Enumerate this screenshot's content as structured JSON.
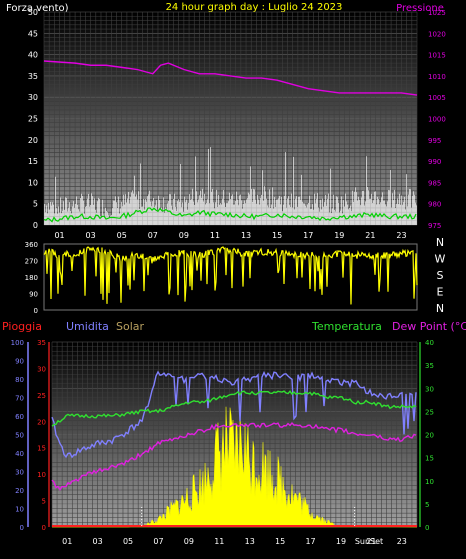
{
  "header": {
    "left_label": "Forza vento)",
    "title": "24 hour graph day : Luglio 24 2023",
    "right_label": "Pressione"
  },
  "bottom_header": {
    "pioggia": "Pioggia",
    "umidita": "Umidita",
    "solar": "Solar",
    "temperatura": "Temperatura",
    "dewpoint": "Dew Point (°C)"
  },
  "compass": [
    "N",
    "W",
    "S",
    "E",
    "N"
  ],
  "sunset_label": "SunSet",
  "colors": {
    "wind_axis": "#ffffff",
    "pressure": "#e000e0",
    "gust": "#ffffff",
    "avg": "#00d000",
    "direction": "#ffff00",
    "rain": "#ff2020",
    "humidity": "#8080ff",
    "solar": "#ffff00",
    "temperature": "#30e030",
    "dewpoint": "#e020e0"
  },
  "chart_data": [
    {
      "type": "line",
      "name": "wind-pressure",
      "x_ticks": [
        "01",
        "03",
        "05",
        "07",
        "09",
        "11",
        "13",
        "15",
        "17",
        "19",
        "21",
        "23"
      ],
      "ylim_left": [
        0,
        50
      ],
      "yticks_left": [
        "0",
        "5",
        "10",
        "15",
        "20",
        "25",
        "30",
        "35",
        "40",
        "45",
        "50"
      ],
      "ylim_right": [
        975,
        1025
      ],
      "yticks_right": [
        "975",
        "980",
        "985",
        "990",
        "995",
        "1000",
        "1005",
        "1010",
        "1015",
        "1020",
        "1025"
      ],
      "grid": true,
      "series": [
        {
          "key": "pressure",
          "x": [
            0,
            2,
            3,
            4,
            5,
            6,
            7,
            7.5,
            8,
            9,
            10,
            11,
            12,
            13,
            14,
            15,
            16,
            17,
            18,
            19,
            20,
            21,
            22,
            23,
            24
          ],
          "values": [
            1013.5,
            1013,
            1012.5,
            1012.5,
            1012,
            1011.5,
            1010.5,
            1012.5,
            1013,
            1011.5,
            1010.5,
            1010.5,
            1010,
            1009.5,
            1009.5,
            1009,
            1008,
            1007,
            1006.5,
            1006,
            1006,
            1006,
            1006,
            1006,
            1005.5
          ]
        },
        {
          "key": "gust",
          "x": [
            0,
            1,
            2,
            3,
            4,
            5,
            6,
            7,
            8,
            9,
            10,
            11,
            12,
            13,
            14,
            15,
            16,
            17,
            18,
            19,
            20,
            21,
            22,
            23,
            24
          ],
          "values": [
            5,
            4,
            5,
            5,
            4,
            5,
            6,
            6,
            5,
            5,
            8,
            6,
            6,
            6,
            7,
            6,
            5,
            6,
            5,
            5,
            6,
            7,
            6,
            6,
            6
          ]
        },
        {
          "key": "avg",
          "x": [
            0,
            1,
            2,
            3,
            4,
            5,
            6,
            7,
            8,
            9,
            10,
            11,
            12,
            13,
            14,
            15,
            16,
            17,
            18,
            19,
            20,
            21,
            22,
            23,
            24
          ],
          "values": [
            1,
            1.5,
            2,
            2,
            1.5,
            2,
            3,
            4,
            3,
            2,
            3,
            2.5,
            2.5,
            2,
            2,
            2.5,
            2,
            2,
            1.5,
            2,
            2,
            2.5,
            2,
            2,
            2
          ]
        }
      ]
    },
    {
      "type": "line",
      "name": "wind-direction",
      "ylim": [
        0,
        360
      ],
      "yticks": [
        "0",
        "90",
        "180",
        "270",
        "360"
      ],
      "series": [
        {
          "key": "direction",
          "x": [
            0,
            1,
            2,
            3,
            4,
            5,
            6,
            7,
            8,
            9,
            10,
            11,
            12,
            13,
            14,
            15,
            16,
            17,
            18,
            19,
            20,
            21,
            22,
            23,
            24
          ],
          "values": [
            320,
            300,
            310,
            330,
            320,
            280,
            300,
            270,
            300,
            310,
            300,
            320,
            330,
            300,
            320,
            310,
            300,
            300,
            300,
            310,
            300,
            290,
            300,
            310,
            300
          ]
        }
      ]
    },
    {
      "type": "line",
      "name": "weather",
      "x_ticks": [
        "01",
        "03",
        "05",
        "07",
        "09",
        "11",
        "13",
        "15",
        "17",
        "19",
        "21",
        "23"
      ],
      "ylim_humidity": [
        0,
        100
      ],
      "yticks_humidity": [
        "0",
        "10",
        "20",
        "30",
        "40",
        "50",
        "60",
        "70",
        "80",
        "90",
        "100"
      ],
      "ylim_rain": [
        0,
        35
      ],
      "yticks_rain": [
        "0",
        "5",
        "10",
        "15",
        "20",
        "25",
        "30",
        "35"
      ],
      "ylim_temp": [
        0,
        40
      ],
      "yticks_temp": [
        "0",
        "5",
        "10",
        "15",
        "20",
        "25",
        "30",
        "35",
        "40"
      ],
      "grid": true,
      "series": [
        {
          "key": "humidity",
          "x": [
            0,
            0.5,
            1,
            2,
            3,
            4,
            5,
            6,
            6.5,
            7,
            8,
            9,
            10,
            11,
            12,
            13,
            14,
            15,
            16,
            17,
            18,
            19,
            20,
            21,
            22,
            23,
            24
          ],
          "values": [
            58,
            45,
            38,
            42,
            45,
            47,
            52,
            58,
            72,
            84,
            80,
            80,
            82,
            80,
            78,
            80,
            82,
            82,
            80,
            82,
            80,
            78,
            78,
            72,
            70,
            72,
            74
          ]
        },
        {
          "key": "temperature",
          "x": [
            0,
            0.5,
            1,
            2,
            3,
            4,
            5,
            6,
            7,
            8,
            9,
            10,
            11,
            12,
            13,
            14,
            15,
            16,
            17,
            18,
            19,
            20,
            21,
            22,
            23,
            24
          ],
          "values": [
            22,
            23,
            24,
            24,
            24,
            24,
            24.5,
            25,
            25,
            26,
            27,
            27,
            28,
            29,
            29,
            29,
            29,
            29,
            29,
            28,
            28,
            27,
            27,
            26,
            26,
            26
          ]
        },
        {
          "key": "dewpoint",
          "x": [
            0,
            0.5,
            1,
            2,
            3,
            4,
            5,
            6,
            7,
            8,
            9,
            10,
            11,
            12,
            13,
            14,
            15,
            16,
            17,
            18,
            19,
            20,
            21,
            22,
            23,
            24
          ],
          "values": [
            10,
            8,
            9,
            11,
            12,
            13,
            14,
            16,
            18,
            19,
            20,
            21,
            22,
            22,
            22,
            22,
            22,
            22,
            22,
            21,
            21,
            20,
            20,
            19,
            19,
            20
          ]
        },
        {
          "key": "solar",
          "x": [
            0,
            5,
            6,
            7,
            8,
            9,
            10,
            10.5,
            11,
            11.5,
            12,
            12.5,
            13,
            14,
            15,
            16,
            17,
            18,
            19,
            24
          ],
          "values": [
            0,
            0,
            0.3,
            2,
            5,
            8,
            12,
            16,
            20,
            22,
            19,
            23,
            18,
            16,
            12,
            8,
            4,
            1.5,
            0.2,
            0
          ]
        },
        {
          "key": "rain",
          "x": [
            0,
            24
          ],
          "values": [
            0,
            0
          ]
        }
      ]
    }
  ]
}
